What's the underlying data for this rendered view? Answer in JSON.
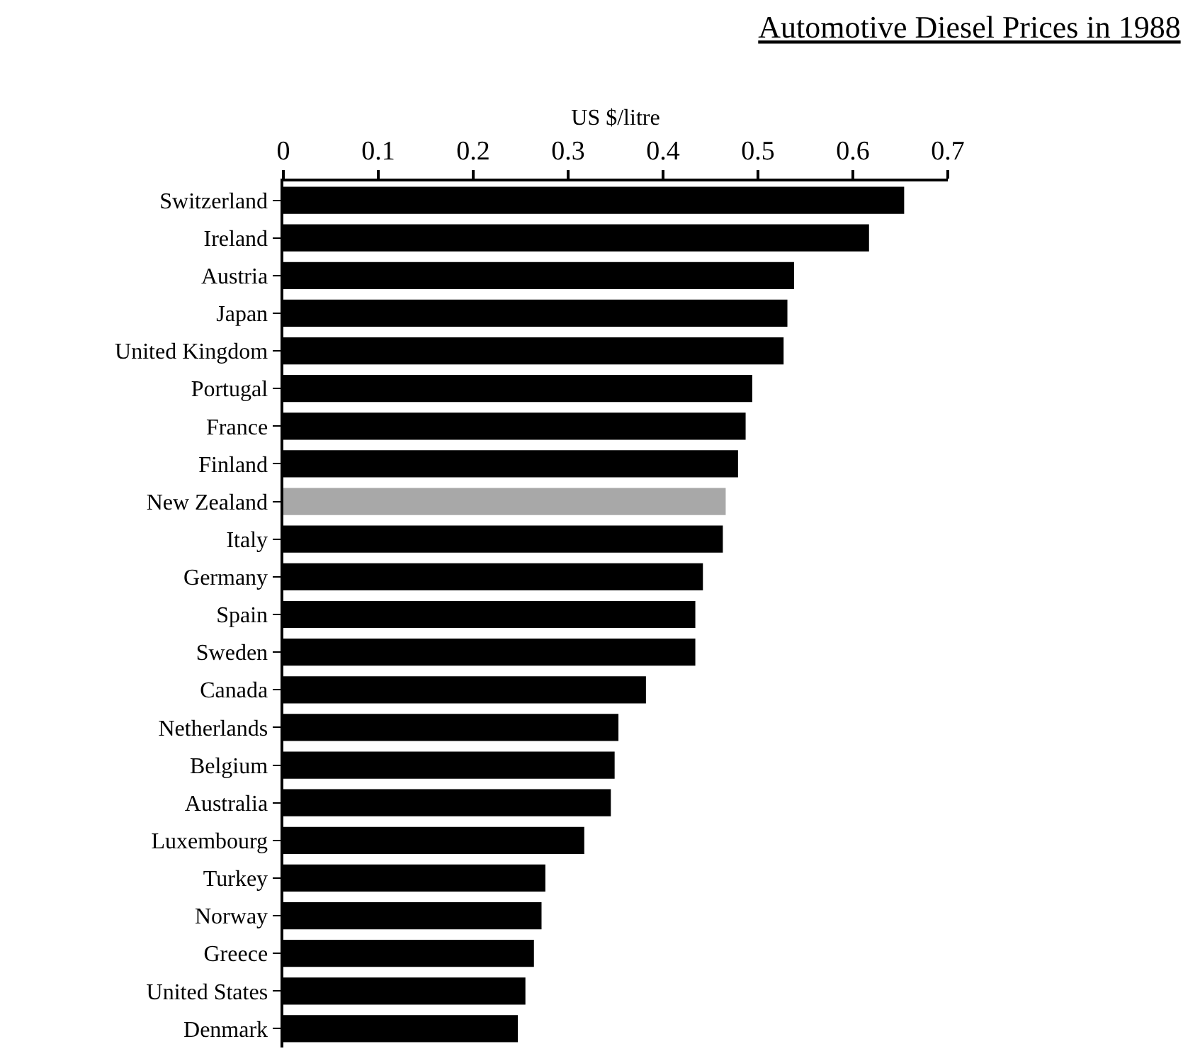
{
  "chart_data": {
    "type": "bar",
    "orientation": "horizontal",
    "title": "Automotive Diesel Prices in 1988",
    "xlabel": "US $/litre",
    "categories": [
      "Switzerland",
      "Ireland",
      "Austria",
      "Japan",
      "United Kingdom",
      "Portugal",
      "France",
      "Finland",
      "New Zealand",
      "Italy",
      "Germany",
      "Spain",
      "Sweden",
      "Canada",
      "Netherlands",
      "Belgium",
      "Australia",
      "Luxembourg",
      "Turkey",
      "Norway",
      "Greece",
      "United States",
      "Denmark"
    ],
    "values": [
      0.654,
      0.617,
      0.538,
      0.531,
      0.527,
      0.494,
      0.487,
      0.479,
      0.466,
      0.463,
      0.442,
      0.434,
      0.434,
      0.382,
      0.353,
      0.349,
      0.345,
      0.317,
      0.276,
      0.272,
      0.264,
      0.255,
      0.247
    ],
    "colors": [
      "#000000",
      "#000000",
      "#000000",
      "#000000",
      "#000000",
      "#000000",
      "#000000",
      "#000000",
      "#a8a8a8",
      "#000000",
      "#000000",
      "#000000",
      "#000000",
      "#000000",
      "#000000",
      "#000000",
      "#000000",
      "#000000",
      "#000000",
      "#000000",
      "#000000",
      "#000000",
      "#000000"
    ],
    "xlim": [
      0,
      0.7
    ],
    "xticks": [
      0,
      0.1,
      0.2,
      0.3,
      0.4,
      0.5,
      0.6,
      0.7
    ]
  }
}
